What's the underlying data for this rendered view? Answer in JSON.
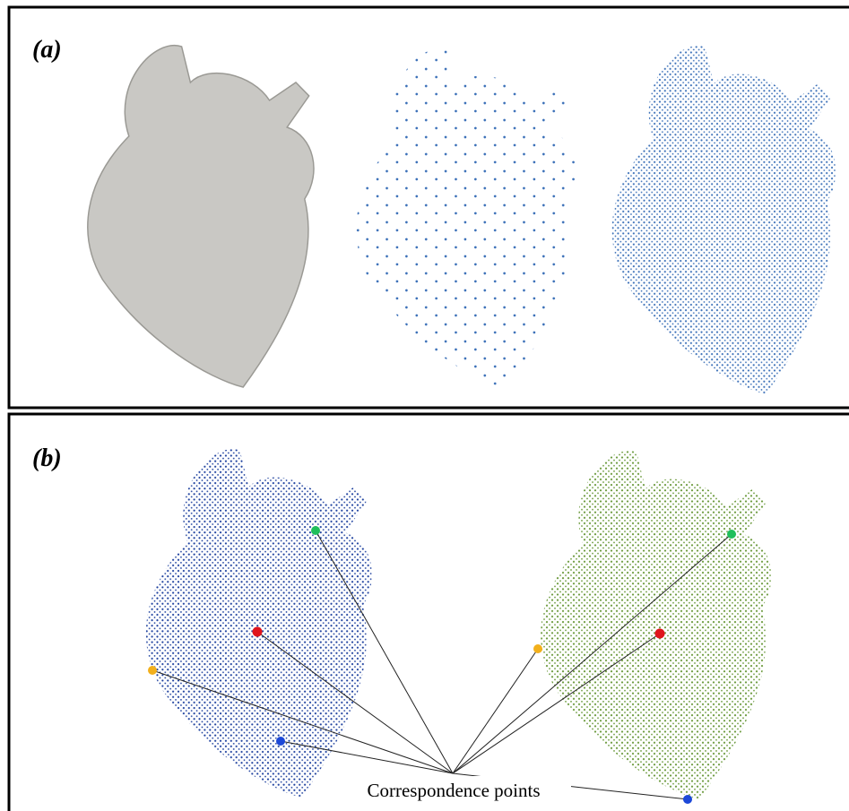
{
  "panels": [
    {
      "label": "(a)"
    },
    {
      "label": "(b)",
      "annotation": "Correspondence points"
    }
  ]
}
